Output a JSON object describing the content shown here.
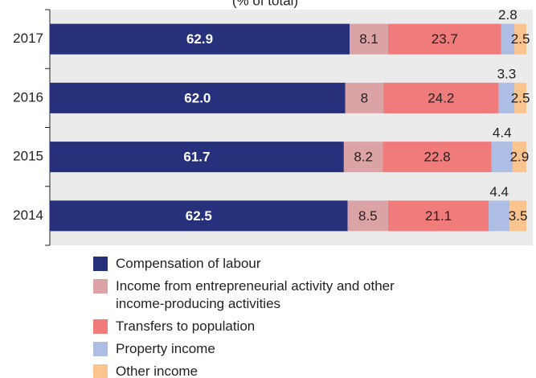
{
  "chart_data": {
    "type": "stacked_barh",
    "subtitle": "(% of total)",
    "categories": [
      "2017",
      "2016",
      "2015",
      "2014"
    ],
    "series": [
      {
        "name": "Compensation of labour",
        "color": "#27307a",
        "values": [
          62.9,
          62.0,
          61.7,
          62.5
        ],
        "value_labels": [
          "62.9",
          "62.0",
          "61.7",
          "62.5"
        ]
      },
      {
        "name": "Income from entrepreneurial activity and other income-producing activities",
        "color": "#dba3a6",
        "values": [
          8.1,
          8.0,
          8.2,
          8.5
        ]
      },
      {
        "name": "Transfers to population",
        "color": "#f07b7b",
        "values": [
          23.7,
          24.2,
          22.8,
          21.1
        ]
      },
      {
        "name": "Property income",
        "color": "#aebde3",
        "values": [
          2.8,
          3.3,
          4.4,
          4.4
        ]
      },
      {
        "name": "Other income",
        "color": "#fbc48e",
        "values": [
          2.5,
          2.5,
          2.9,
          3.5
        ]
      }
    ]
  }
}
